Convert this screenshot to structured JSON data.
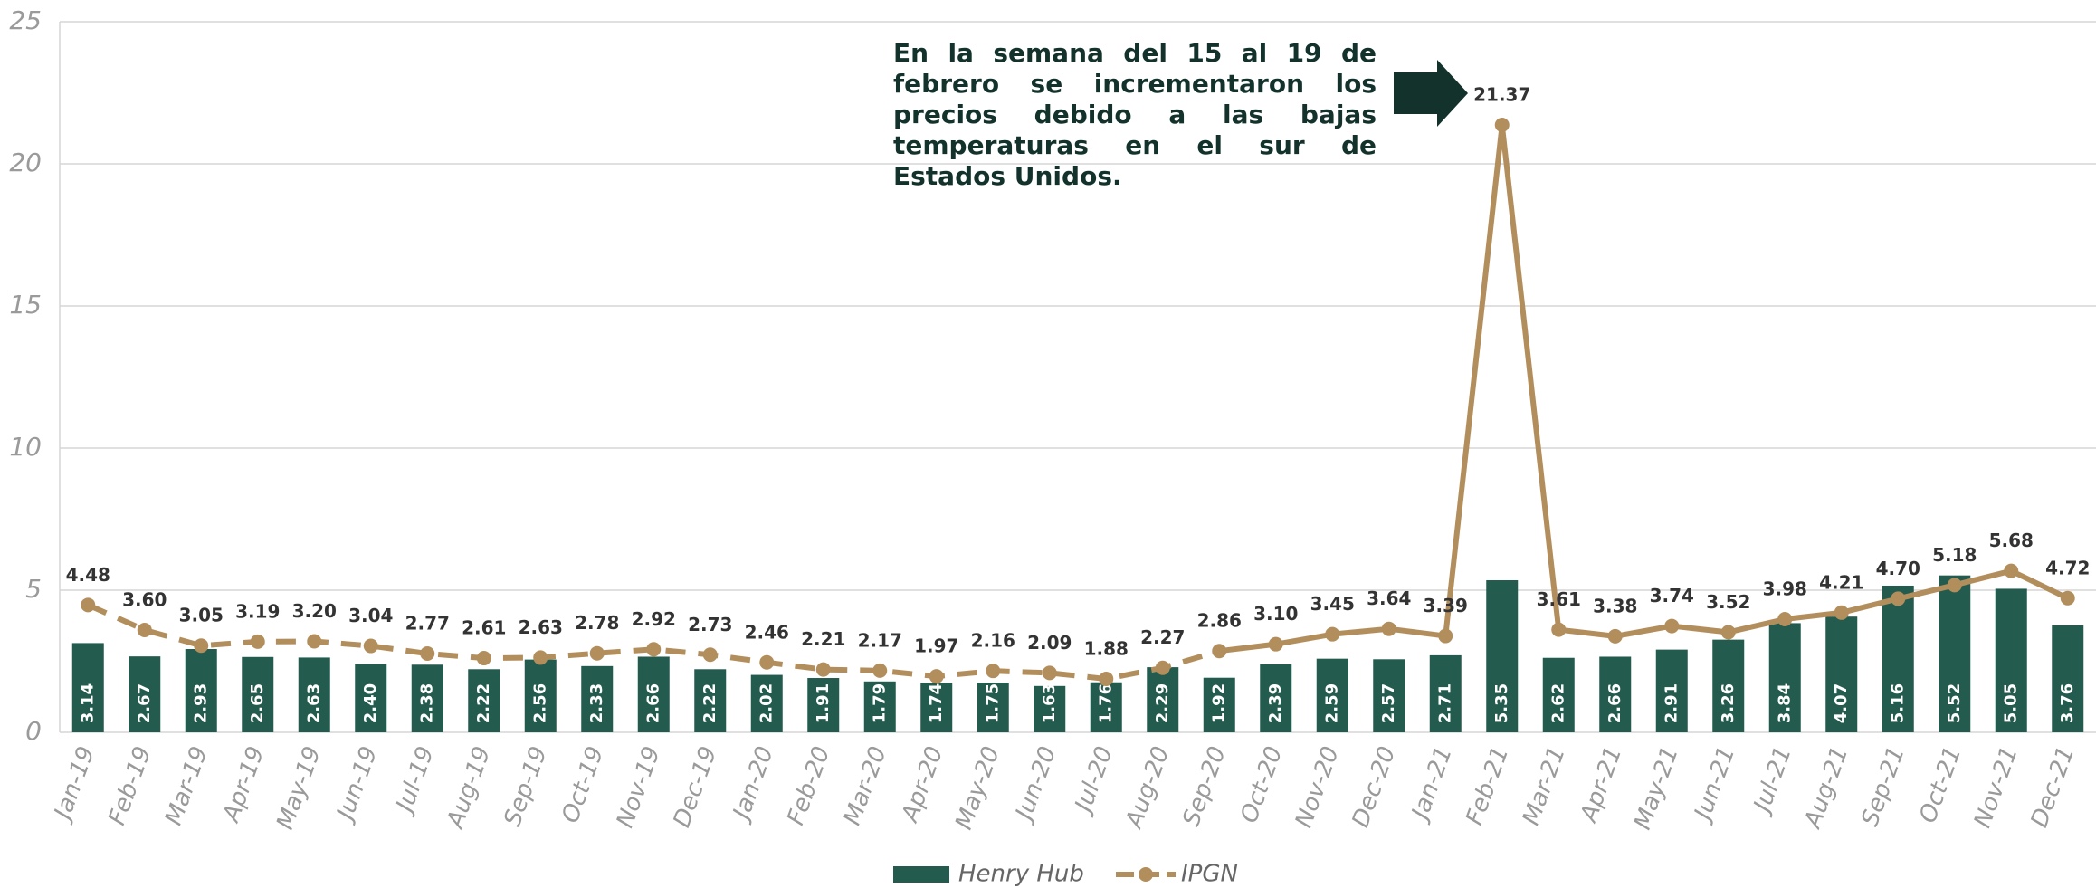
{
  "chart_data": {
    "type": "bar_line",
    "annotation": "En la semana del 15 al 19 de febrero se incrementaron los precios debido a las bajas temperaturas en el sur de Estados Unidos.",
    "categories": [
      "Jan-19",
      "Feb-19",
      "Mar-19",
      "Apr-19",
      "May-19",
      "Jun-19",
      "Jul-19",
      "Aug-19",
      "Sep-19",
      "Oct-19",
      "Nov-19",
      "Dec-19",
      "Jan-20",
      "Feb-20",
      "Mar-20",
      "Apr-20",
      "May-20",
      "Jun-20",
      "Jul-20",
      "Aug-20",
      "Sep-20",
      "Oct-20",
      "Nov-20",
      "Dec-20",
      "Jan-21",
      "Feb-21",
      "Mar-21",
      "Apr-21",
      "May-21",
      "Jun-21",
      "Jul-21",
      "Aug-21",
      "Sep-21",
      "Oct-21",
      "Nov-21",
      "Dec-21"
    ],
    "series": [
      {
        "name": "Henry Hub",
        "type": "bar",
        "color": "#235b4e",
        "values": [
          3.14,
          2.67,
          2.93,
          2.65,
          2.63,
          2.4,
          2.38,
          2.22,
          2.56,
          2.33,
          2.66,
          2.22,
          2.02,
          1.91,
          1.79,
          1.74,
          1.75,
          1.63,
          1.76,
          2.29,
          1.92,
          2.39,
          2.59,
          2.57,
          2.71,
          5.35,
          2.62,
          2.66,
          2.91,
          3.26,
          3.84,
          4.07,
          5.16,
          5.52,
          5.05,
          3.76
        ],
        "value_labels": [
          "3.14",
          "2.67",
          "2.93",
          "2.65",
          "2.63",
          "2.40",
          "2.38",
          "2.22",
          "2.56",
          "2.33",
          "2.66",
          "2.22",
          "2.02",
          "1.91",
          "1.79",
          "1.74",
          "1.75",
          "1.63",
          "1.76",
          "2.29",
          "1.92",
          "2.39",
          "2.59",
          "2.57",
          "2.71",
          "5.35",
          "2.62",
          "2.66",
          "2.91",
          "3.26",
          "3.84",
          "4.07",
          "5.16",
          "5.52",
          "5.05",
          "3.76"
        ]
      },
      {
        "name": "IPGN",
        "type": "line",
        "color": "#b38e5d",
        "dashed_until": "Sep-20",
        "values": [
          4.48,
          3.6,
          3.05,
          3.19,
          3.2,
          3.04,
          2.77,
          2.61,
          2.63,
          2.78,
          2.92,
          2.73,
          2.46,
          2.21,
          2.17,
          1.97,
          2.16,
          2.09,
          1.88,
          2.27,
          2.86,
          3.1,
          3.45,
          3.64,
          3.39,
          21.37,
          3.61,
          3.38,
          3.74,
          3.52,
          3.98,
          4.21,
          4.7,
          5.18,
          5.68,
          4.72
        ],
        "value_labels": [
          "4.48",
          "3.60",
          "3.05",
          "3.19",
          "3.20",
          "3.04",
          "2.77",
          "2.61",
          "2.63",
          "2.78",
          "2.92",
          "2.73",
          "2.46",
          "2.21",
          "2.17",
          "1.97",
          "2.16",
          "2.09",
          "1.88",
          "2.27",
          "2.86",
          "3.10",
          "3.45",
          "3.64",
          "3.39",
          "21.37",
          "3.61",
          "3.38",
          "3.74",
          "3.52",
          "3.98",
          "4.21",
          "4.70",
          "5.18",
          "5.68",
          "4.72"
        ]
      }
    ],
    "ylim": [
      0,
      25
    ],
    "yticks": [
      0,
      5,
      10,
      15,
      20,
      25
    ],
    "grid": true,
    "legend": "bottom"
  }
}
